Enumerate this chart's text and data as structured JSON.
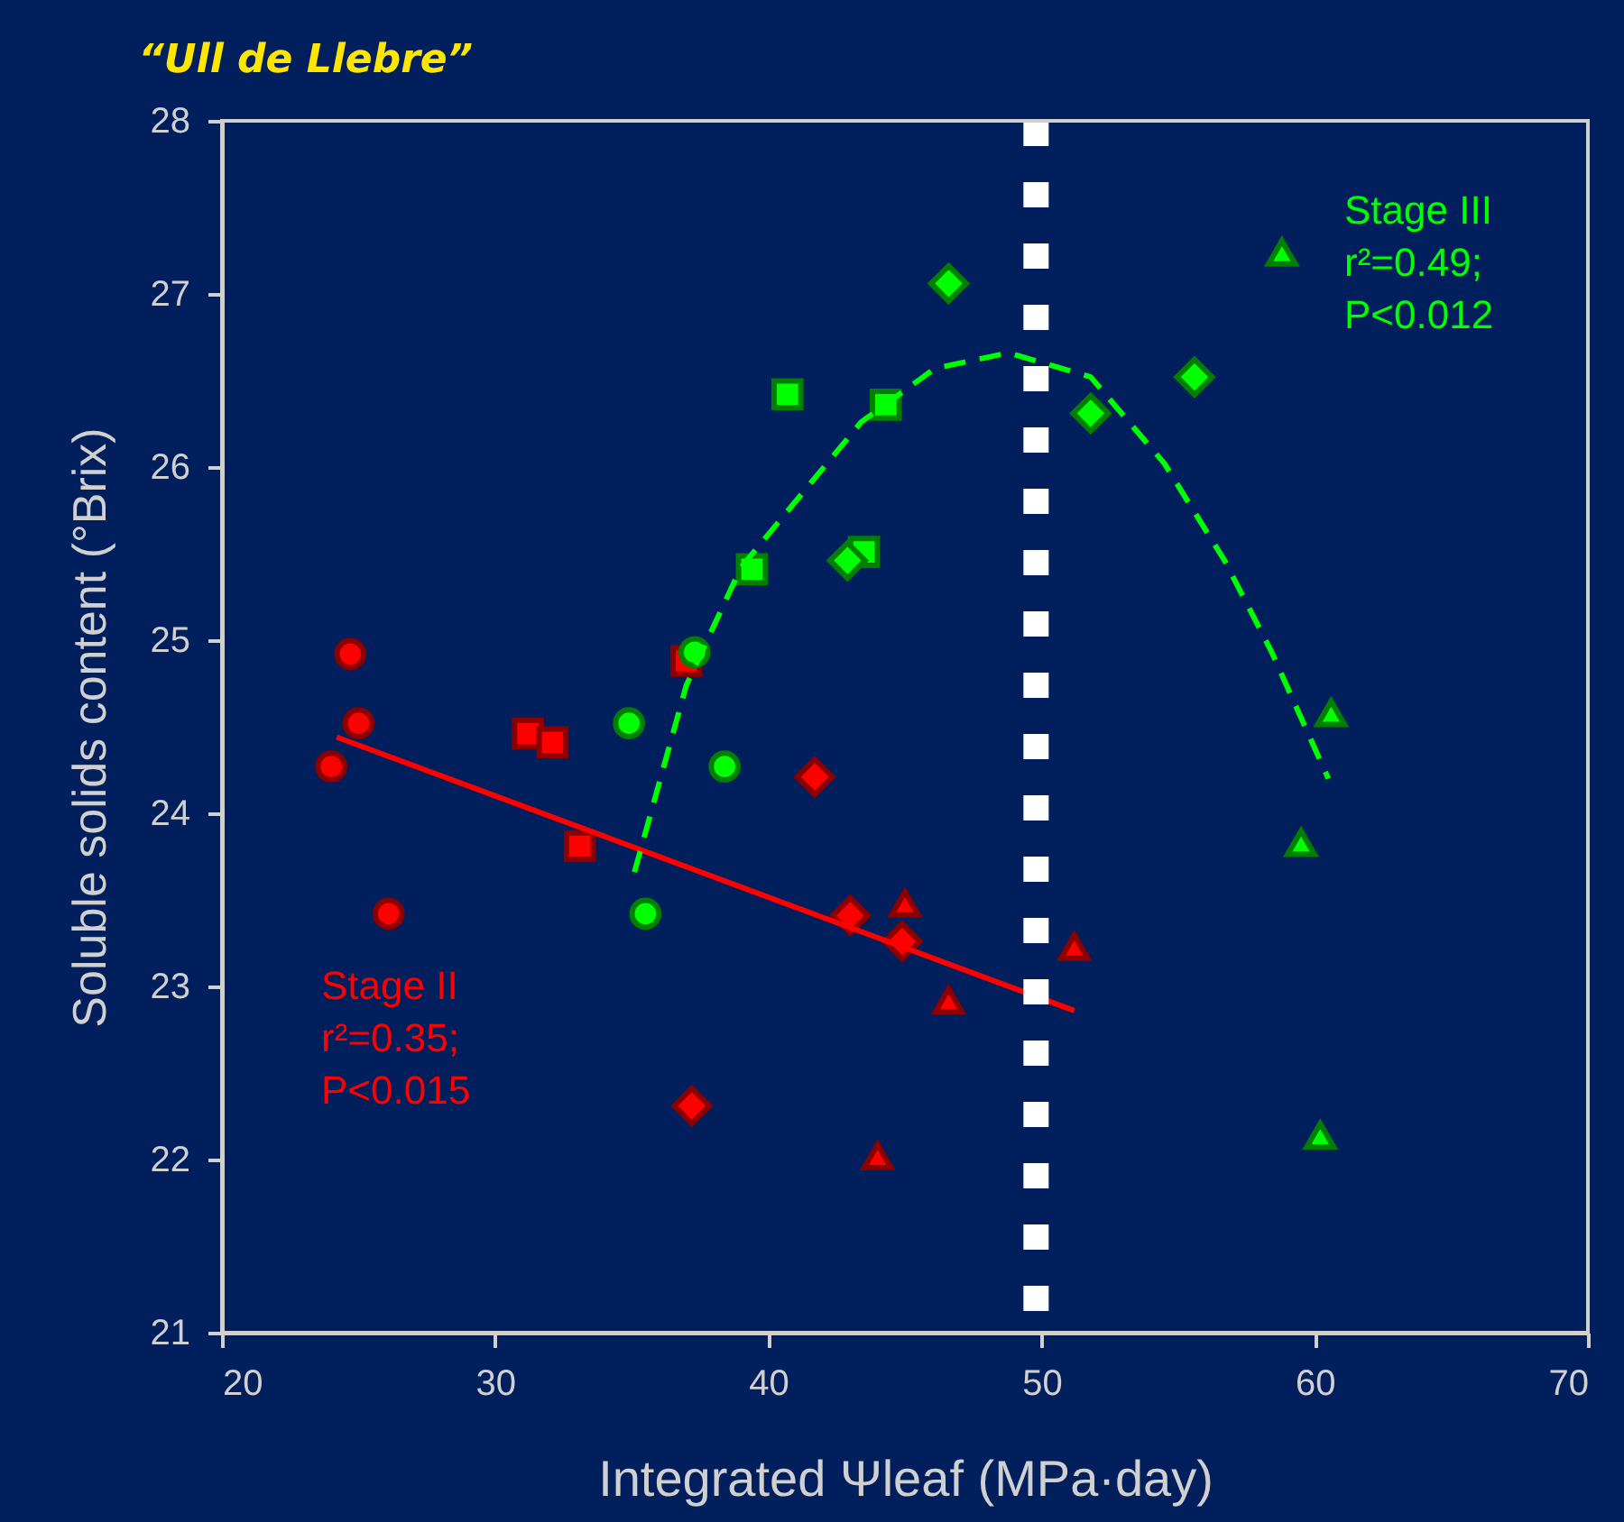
{
  "chart_data": {
    "type": "scatter",
    "title": "“Ull de Llebre”",
    "xlabel": "Integrated Ψleaf (MPa·day)",
    "ylabel": "Soluble solids content (°Brix)",
    "xlim": [
      20,
      70
    ],
    "xticks": [
      20,
      30,
      40,
      50,
      60,
      70
    ],
    "ylim": [
      21,
      28
    ],
    "yticks": [
      21,
      22,
      23,
      24,
      25,
      26,
      27,
      28
    ],
    "grid": false,
    "series": [
      {
        "marker": "circle",
        "color": "#ff0000",
        "x": [
          24.7,
          25.0,
          24.0,
          26.1
        ],
        "values": [
          24.92,
          24.52,
          24.27,
          23.42
        ]
      },
      {
        "marker": "square",
        "color": "#ff0000",
        "x": [
          31.2,
          32.1,
          33.1,
          37.0
        ],
        "values": [
          24.46,
          24.41,
          23.81,
          24.88
        ]
      },
      {
        "marker": "diamond",
        "color": "#ff0000",
        "x": [
          41.7,
          43.0,
          44.9,
          37.2
        ],
        "values": [
          24.21,
          23.41,
          23.26,
          22.31
        ]
      },
      {
        "marker": "triangle",
        "color": "#ff0000",
        "x": [
          45.0,
          46.6,
          44.0,
          51.2
        ],
        "values": [
          23.48,
          22.92,
          22.02,
          23.23
        ]
      },
      {
        "marker": "circle",
        "color": "#00ff00",
        "x": [
          34.9,
          37.3,
          38.4,
          35.5
        ],
        "values": [
          24.52,
          24.93,
          24.27,
          23.42
        ]
      },
      {
        "marker": "square",
        "color": "#00ff00",
        "x": [
          39.4,
          40.7,
          43.5,
          44.3
        ],
        "values": [
          25.41,
          26.42,
          25.51,
          26.36
        ]
      },
      {
        "marker": "diamond",
        "color": "#00ff00",
        "x": [
          42.9,
          46.6,
          51.8,
          55.6
        ],
        "values": [
          25.46,
          27.06,
          26.31,
          26.52
        ]
      },
      {
        "marker": "triangle",
        "color": "#00ff00",
        "x": [
          58.8,
          60.6,
          59.5,
          60.2
        ],
        "values": [
          27.24,
          24.58,
          23.83,
          22.14
        ]
      },
      {
        "type": "line",
        "line_style": "solid",
        "color": "#ff0000",
        "x": [
          24.2,
          51.2
        ],
        "values": [
          24.44,
          22.86
        ]
      },
      {
        "type": "line",
        "line_style": "dashed",
        "color": "#00ff00",
        "x": [
          35.1,
          37.0,
          39.0,
          43.4,
          46.1,
          48.8,
          51.8,
          54.5,
          56.7,
          58.4,
          60.5
        ],
        "values": [
          23.66,
          24.74,
          25.42,
          26.26,
          26.57,
          26.66,
          26.52,
          26.02,
          25.46,
          24.94,
          24.2
        ]
      }
    ],
    "ref_lines": [
      {
        "axis": "x",
        "value": 49.8,
        "color": "#ffffff",
        "line_style": "dotted"
      }
    ],
    "annotations": [
      "Stage II\nr²=0.35;\nP<0.015",
      "Stage III\nr²=0.49;\nP<0.012"
    ]
  }
}
